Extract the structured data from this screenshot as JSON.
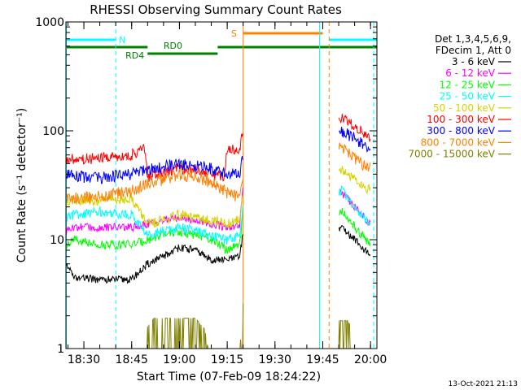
{
  "chart_data": {
    "type": "line",
    "title": "RHESSI Observing Summary Count Rates",
    "xlabel": "Start Time (07-Feb-09 18:24:22)",
    "ylabel": "Count Rate (s⁻¹ detector⁻¹)",
    "y_scale": "log",
    "ylim": [
      1,
      1000
    ],
    "xlim": [
      "18:24:22",
      "20:02:00"
    ],
    "x_ticks": [
      "18:30",
      "18:45",
      "19:00",
      "19:15",
      "19:30",
      "19:45",
      "20:00"
    ],
    "y_ticks": [
      "1",
      "10",
      "100",
      "1000"
    ],
    "legend_position": "right",
    "legend_header": [
      "Det 1,3,4,5,6,9,",
      "FDecim 1, Att 0"
    ],
    "gaps": [
      [
        "19:20",
        "19:50"
      ]
    ],
    "series": [
      {
        "name": "3 - 6 keV",
        "color": "#000000",
        "points": [
          [
            "18:24:30",
            6
          ],
          [
            "18:27",
            4.5
          ],
          [
            "18:35",
            4.3
          ],
          [
            "18:45",
            4.3
          ],
          [
            "18:50",
            6
          ],
          [
            "18:55",
            7
          ],
          [
            "19:00",
            8.5
          ],
          [
            "19:05",
            8
          ],
          [
            "19:10",
            6.5
          ],
          [
            "19:15",
            6.5
          ],
          [
            "19:19",
            7
          ],
          [
            "19:20",
            12
          ],
          [
            "19:51",
            13
          ],
          [
            "19:55",
            10
          ],
          [
            "20:00",
            7
          ]
        ]
      },
      {
        "name": "6 - 12 keV",
        "color": "#ff00ff",
        "points": [
          [
            "18:24:30",
            12
          ],
          [
            "18:27",
            13
          ],
          [
            "18:35",
            13
          ],
          [
            "18:45",
            13
          ],
          [
            "18:50",
            14
          ],
          [
            "18:55",
            15
          ],
          [
            "19:00",
            16
          ],
          [
            "19:05",
            15
          ],
          [
            "19:10",
            14
          ],
          [
            "19:15",
            13
          ],
          [
            "19:19",
            14
          ],
          [
            "19:20",
            30
          ],
          [
            "19:51",
            27
          ],
          [
            "19:55",
            20
          ],
          [
            "20:00",
            14
          ]
        ]
      },
      {
        "name": "12 - 25 keV",
        "color": "#00ff00",
        "points": [
          [
            "18:24:30",
            9
          ],
          [
            "18:27",
            10
          ],
          [
            "18:35",
            9
          ],
          [
            "18:45",
            9
          ],
          [
            "18:50",
            10
          ],
          [
            "18:55",
            11
          ],
          [
            "19:00",
            12
          ],
          [
            "19:05",
            11
          ],
          [
            "19:10",
            10
          ],
          [
            "19:15",
            8
          ],
          [
            "19:19",
            9
          ],
          [
            "19:20",
            20
          ],
          [
            "19:51",
            18
          ],
          [
            "19:55",
            13
          ],
          [
            "20:00",
            9
          ]
        ]
      },
      {
        "name": "25 - 50 keV",
        "color": "#00ffff",
        "points": [
          [
            "18:24:30",
            16
          ],
          [
            "18:27",
            17
          ],
          [
            "18:35",
            18
          ],
          [
            "18:45",
            17
          ],
          [
            "18:50",
            11
          ],
          [
            "18:55",
            12
          ],
          [
            "19:00",
            13
          ],
          [
            "19:05",
            12
          ],
          [
            "19:10",
            11
          ],
          [
            "19:15",
            10
          ],
          [
            "19:19",
            11
          ],
          [
            "19:20",
            22
          ],
          [
            "19:51",
            28
          ],
          [
            "19:55",
            20
          ],
          [
            "20:00",
            14
          ]
        ]
      },
      {
        "name": "50 - 100 keV",
        "color": "#d4d400",
        "points": [
          [
            "18:24:30",
            22
          ],
          [
            "18:27",
            23
          ],
          [
            "18:35",
            23
          ],
          [
            "18:45",
            24
          ],
          [
            "18:50",
            14
          ],
          [
            "18:55",
            15
          ],
          [
            "19:00",
            17
          ],
          [
            "19:05",
            16
          ],
          [
            "19:10",
            15
          ],
          [
            "19:15",
            14
          ],
          [
            "19:19",
            15
          ],
          [
            "19:20",
            30
          ],
          [
            "19:51",
            45
          ],
          [
            "19:55",
            35
          ],
          [
            "20:00",
            28
          ]
        ]
      },
      {
        "name": "100 - 300 keV",
        "color": "#ff0000",
        "points": [
          [
            "18:24:30",
            55
          ],
          [
            "18:27",
            55
          ],
          [
            "18:35",
            56
          ],
          [
            "18:45",
            60
          ],
          [
            "18:49",
            70
          ],
          [
            "18:50",
            38
          ],
          [
            "18:55",
            42
          ],
          [
            "19:00",
            45
          ],
          [
            "19:05",
            44
          ],
          [
            "19:10",
            40
          ],
          [
            "19:14",
            38
          ],
          [
            "19:15",
            68
          ],
          [
            "19:19",
            68
          ],
          [
            "19:20",
            110
          ],
          [
            "19:51",
            130
          ],
          [
            "19:55",
            110
          ],
          [
            "20:00",
            85
          ]
        ]
      },
      {
        "name": "300 - 800 keV",
        "color": "#0000ff",
        "points": [
          [
            "18:24:30",
            40
          ],
          [
            "18:27",
            38
          ],
          [
            "18:35",
            37
          ],
          [
            "18:45",
            40
          ],
          [
            "18:50",
            44
          ],
          [
            "18:55",
            47
          ],
          [
            "19:00",
            49
          ],
          [
            "19:05",
            48
          ],
          [
            "19:10",
            45
          ],
          [
            "19:15",
            40
          ],
          [
            "19:19",
            40
          ],
          [
            "19:20",
            60
          ],
          [
            "19:51",
            100
          ],
          [
            "19:55",
            85
          ],
          [
            "20:00",
            65
          ]
        ]
      },
      {
        "name": "800 - 7000 keV",
        "color": "#ff8000",
        "points": [
          [
            "18:24:30",
            24
          ],
          [
            "18:27",
            24
          ],
          [
            "18:35",
            25
          ],
          [
            "18:45",
            28
          ],
          [
            "18:50",
            33
          ],
          [
            "18:55",
            36
          ],
          [
            "19:00",
            40
          ],
          [
            "19:05",
            38
          ],
          [
            "19:10",
            34
          ],
          [
            "19:15",
            27
          ],
          [
            "19:19",
            24
          ],
          [
            "19:20",
            40
          ],
          [
            "19:51",
            70
          ],
          [
            "19:55",
            55
          ],
          [
            "20:00",
            45
          ]
        ]
      },
      {
        "name": "7000 - 15000 keV",
        "color": "#808000",
        "points": [
          [
            "18:49",
            1
          ],
          [
            "18:50",
            1.6
          ],
          [
            "18:52",
            1.9
          ],
          [
            "18:55",
            1.9
          ],
          [
            "19:00",
            1.9
          ],
          [
            "19:05",
            1.9
          ],
          [
            "19:08",
            1.5
          ],
          [
            "19:09",
            1
          ],
          [
            "19:19",
            1
          ],
          [
            "19:20",
            2.6
          ],
          [
            "19:51",
            1.8
          ],
          [
            "19:53",
            1.8
          ],
          [
            "19:55",
            1.2
          ]
        ]
      }
    ],
    "annotations": [
      {
        "label": "N",
        "color": "#00ffff",
        "ranges": [
          [
            "18:24:22",
            "18:40"
          ],
          [
            "19:47",
            "20:02"
          ]
        ]
      },
      {
        "label": "RD0",
        "color": "#008000",
        "ranges": [
          [
            "18:24:22",
            "18:50"
          ],
          [
            "19:12",
            "20:02"
          ]
        ]
      },
      {
        "label": "RD4",
        "color": "#008000",
        "ranges": [
          [
            "18:50",
            "19:12"
          ]
        ]
      },
      {
        "label": "S",
        "color": "#ff8000",
        "ranges": [
          [
            "19:20",
            "19:45"
          ]
        ]
      }
    ],
    "vlines": [
      {
        "time": "18:24:30",
        "color": "#00ffff",
        "style": "solid"
      },
      {
        "time": "18:40",
        "color": "#00ffff",
        "style": "dashed"
      },
      {
        "time": "19:20",
        "color": "#ff8000",
        "style": "solid"
      },
      {
        "time": "19:44",
        "color": "#00ffff",
        "style": "solid"
      },
      {
        "time": "19:47",
        "color": "#ff8000",
        "style": "dashed"
      },
      {
        "time": "20:01",
        "color": "#00ffff",
        "style": "dashed"
      }
    ]
  },
  "timestamp": "13-Oct-2021 21:13"
}
